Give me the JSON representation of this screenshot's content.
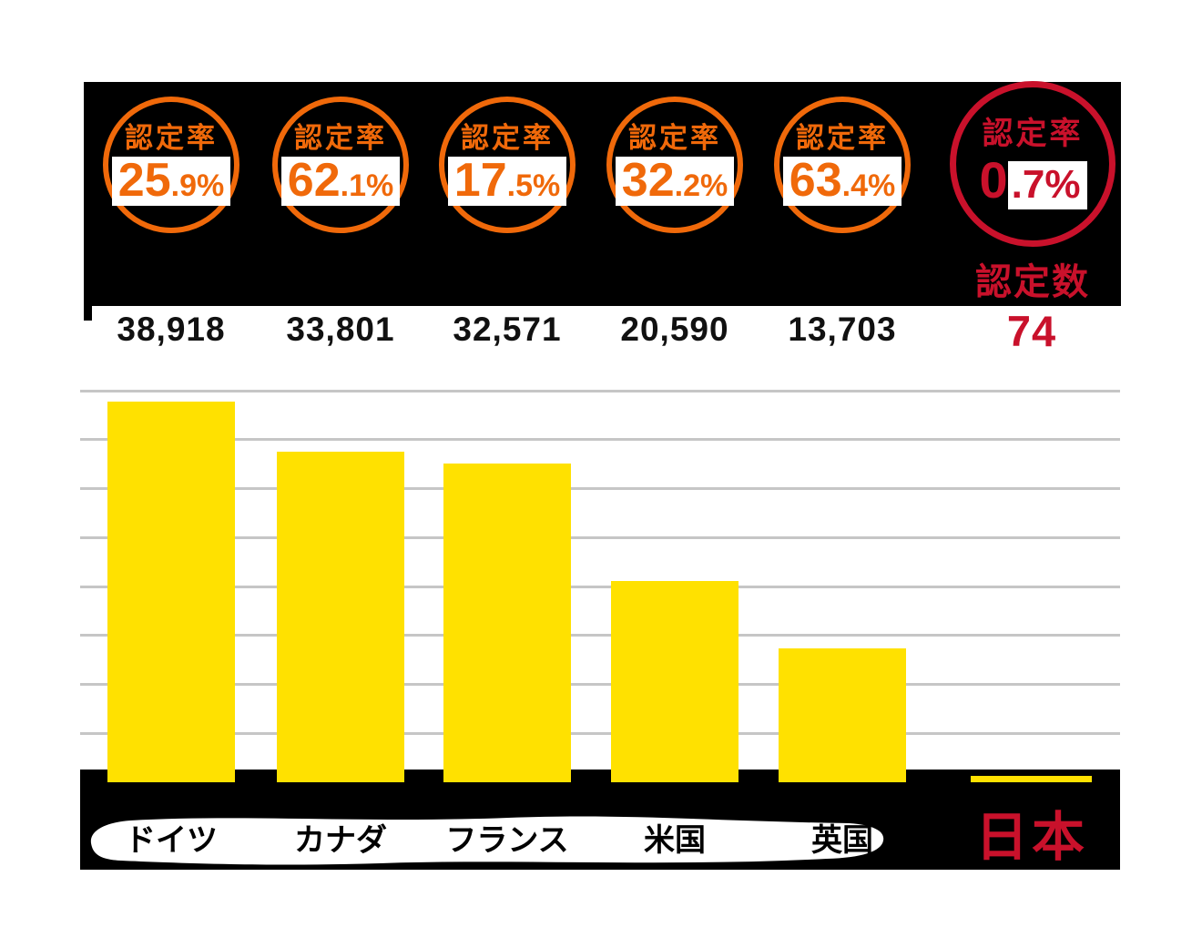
{
  "panel": {
    "rate_label": "認定率",
    "count_label": "認定数"
  },
  "columns": [
    {
      "country": "ドイツ",
      "rate_main": "25",
      "rate_sub": ".9%",
      "count": "38,918"
    },
    {
      "country": "カナダ",
      "rate_main": "62",
      "rate_sub": ".1%",
      "count": "33,801"
    },
    {
      "country": "フランス",
      "rate_main": "17",
      "rate_sub": ".5%",
      "count": "32,571"
    },
    {
      "country": "米国",
      "rate_main": "32",
      "rate_sub": ".2%",
      "count": "20,590"
    },
    {
      "country": "英国",
      "rate_main": "63",
      "rate_sub": ".4%",
      "count": "13,703"
    },
    {
      "country": "日本",
      "rate_main": "0",
      "rate_sub": ".7%",
      "count": "74"
    }
  ],
  "chart_data": {
    "type": "bar",
    "title": "",
    "categories": [
      "ドイツ",
      "カナダ",
      "フランス",
      "米国",
      "英国",
      "日本"
    ],
    "values": [
      38918,
      33801,
      32571,
      20590,
      13703,
      74
    ],
    "value_labels": [
      "38,918",
      "33,801",
      "32,571",
      "20,590",
      "13,703",
      "74"
    ],
    "series_label": "認定数",
    "rates_percent": [
      25.9,
      62.1,
      17.5,
      32.2,
      63.4,
      0.7
    ],
    "rate_label": "認定率",
    "ylim": [
      0,
      40000
    ],
    "grid_interval": 5000,
    "grid": true,
    "legend": "none",
    "bar_color": "#ffe100",
    "accent_orange": "#f0690a",
    "accent_red": "#c9112b",
    "grid_color": "#c6c6c6",
    "highlight_category": "日本"
  }
}
